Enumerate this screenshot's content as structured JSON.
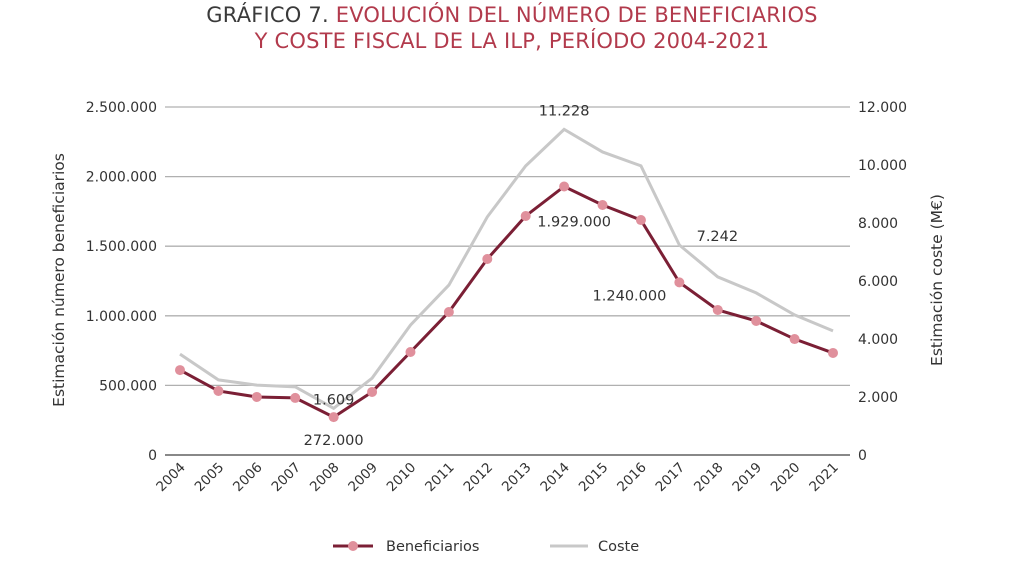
{
  "title": {
    "prefix": "GRÁFICO 7.",
    "line1": "EVOLUCIÓN DEL NÚMERO DE BENEFICIARIOS",
    "line2": "Y COSTE FISCAL DE LA ILP, PERÍODO 2004-2021"
  },
  "chart_data": {
    "type": "line",
    "title": "GRÁFICO 7. EVOLUCIÓN DEL NÚMERO DE BENEFICIARIOS Y COSTE FISCAL DE LA ILP, PERÍODO 2004-2021",
    "x": [
      "2004",
      "2005",
      "2006",
      "2007",
      "2008",
      "2009",
      "2010",
      "2011",
      "2012",
      "2013",
      "2014",
      "2015",
      "2016",
      "2017",
      "2018",
      "2019",
      "2020",
      "2021"
    ],
    "ylabel": "Estimación número beneficiarios",
    "y2label": "Estimación coste (M€)",
    "ylim": [
      0,
      2500000
    ],
    "y2lim": [
      0,
      12000
    ],
    "yticks": [
      "0",
      "500.000",
      "1.000.000",
      "1.500.000",
      "2.000.000",
      "2.500.000"
    ],
    "y2ticks": [
      "0",
      "2.000",
      "4.000",
      "6.000",
      "8.000",
      "10.000",
      "12.000"
    ],
    "grid": true,
    "legend_position": "bottom",
    "series": [
      {
        "name": "Beneficiarios",
        "axis": "left",
        "color": "#7b1f35",
        "marker_color": "#e0909c",
        "values": [
          610000,
          460000,
          417000,
          410000,
          272000,
          453000,
          740000,
          1027000,
          1408000,
          1717000,
          1929000,
          1796000,
          1688000,
          1240000,
          1042000,
          963000,
          833000,
          733000
        ]
      },
      {
        "name": "Coste",
        "axis": "right",
        "color": "#c8c8c8",
        "values": [
          3480,
          2590,
          2410,
          2350,
          1609,
          2650,
          4480,
          5860,
          8210,
          9970,
          11228,
          10450,
          9970,
          7242,
          6140,
          5590,
          4830,
          4280
        ]
      }
    ],
    "annotations": [
      {
        "text": "272.000",
        "series": 0,
        "x": "2008",
        "pos": "below"
      },
      {
        "text": "1.609",
        "series": 1,
        "x": "2008",
        "pos": "above"
      },
      {
        "text": "11.228",
        "series": 1,
        "x": "2014",
        "pos": "above"
      },
      {
        "text": "1.929.000",
        "series": 0,
        "x": "2014",
        "pos": "below"
      },
      {
        "text": "7.242",
        "series": 1,
        "x": "2017",
        "pos": "right"
      },
      {
        "text": "1.240.000",
        "series": 0,
        "x": "2017",
        "pos": "left"
      }
    ]
  }
}
